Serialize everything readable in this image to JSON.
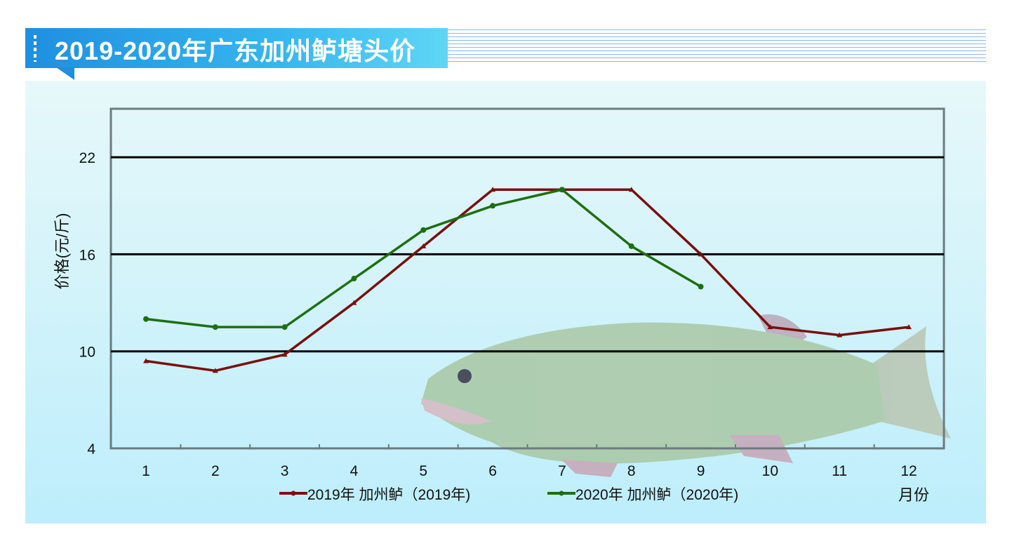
{
  "header": {
    "title": "2019-2020年广东加州鲈塘头价"
  },
  "chart_data": {
    "type": "line",
    "title": "2019-2020年广东加州鲈塘头价",
    "xlabel": "月份",
    "ylabel": "价格(元/斤)",
    "categories": [
      "1",
      "2",
      "3",
      "4",
      "5",
      "6",
      "7",
      "8",
      "9",
      "10",
      "11",
      "12"
    ],
    "yticks": [
      4,
      10,
      16,
      22
    ],
    "ylim": [
      4,
      25
    ],
    "grid": true,
    "legend_position": "bottom",
    "series": [
      {
        "name": "2019年 加州鲈（2019年)",
        "color": "#7a0f0f",
        "marker": "triangle",
        "values": [
          9.4,
          8.8,
          9.8,
          13.0,
          16.5,
          20,
          20,
          20,
          16,
          11.5,
          11,
          11.5
        ]
      },
      {
        "name": "2020年 加州鲈（2020年)",
        "color": "#1e6e12",
        "marker": "circle",
        "values": [
          12,
          11.5,
          11.5,
          14.5,
          17.5,
          19,
          20,
          16.5,
          14,
          null,
          null,
          null
        ]
      }
    ]
  }
}
